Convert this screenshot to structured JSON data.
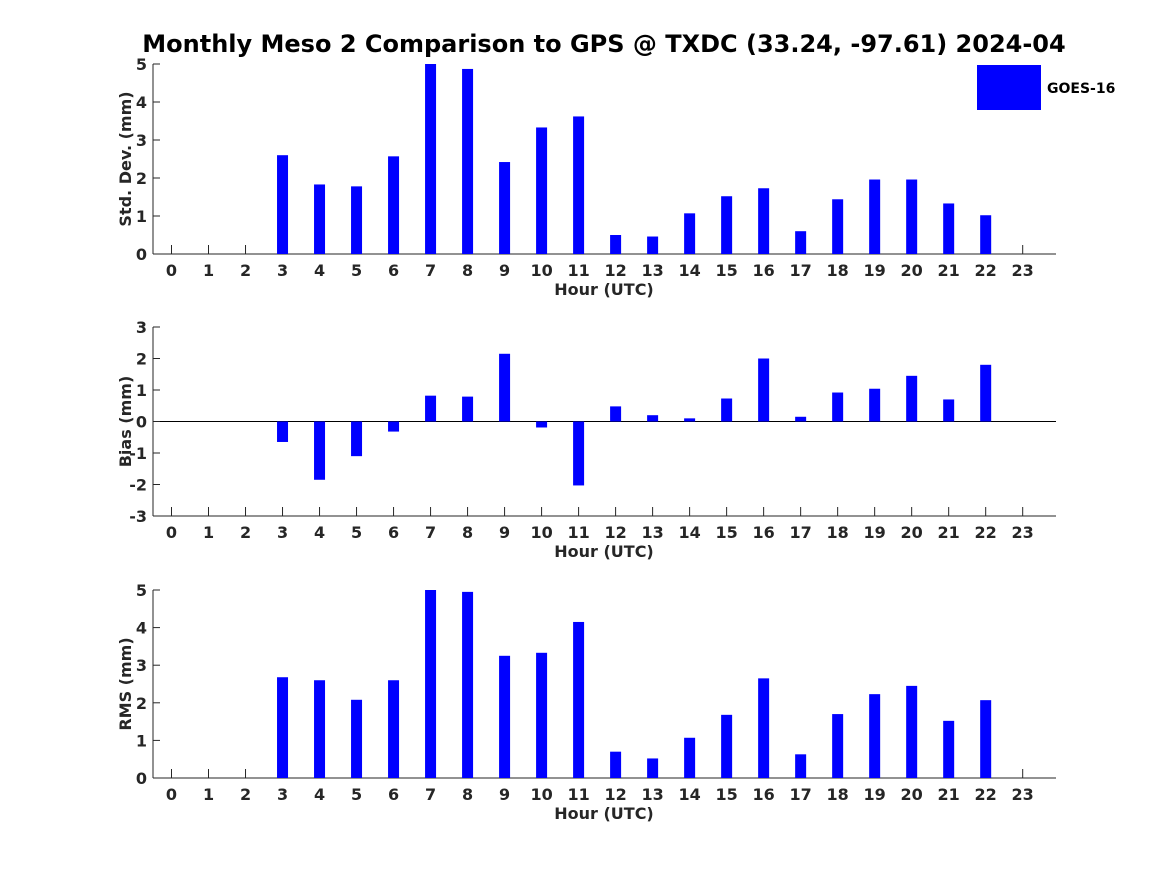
{
  "title": "Monthly Meso 2 Comparison to GPS @ TXDC (33.24, -97.61) 2024-04",
  "legend": {
    "label": "GOES-16",
    "color": "#0000ff",
    "placement": "top-right"
  },
  "chart_data": [
    {
      "type": "bar",
      "ylabel": "Std. Dev. (mm)",
      "xlabel": "Hour (UTC)",
      "ylim": [
        0,
        5
      ],
      "yticks": [
        0,
        1,
        2,
        3,
        4,
        5
      ],
      "categories": [
        "0",
        "1",
        "2",
        "3",
        "4",
        "5",
        "6",
        "7",
        "8",
        "9",
        "10",
        "11",
        "12",
        "13",
        "14",
        "15",
        "16",
        "17",
        "18",
        "19",
        "20",
        "21",
        "22",
        "23"
      ],
      "series": [
        {
          "name": "GOES-16",
          "color": "#0000ff",
          "values": [
            null,
            null,
            null,
            2.6,
            1.83,
            1.78,
            2.57,
            5.0,
            4.87,
            2.42,
            3.33,
            3.62,
            0.5,
            0.46,
            1.07,
            1.52,
            1.73,
            0.6,
            1.44,
            1.96,
            1.96,
            1.33,
            1.02,
            null
          ]
        }
      ]
    },
    {
      "type": "bar",
      "ylabel": "Bias (mm)",
      "xlabel": "Hour (UTC)",
      "ylim": [
        -3,
        3
      ],
      "yticks": [
        -3,
        -2,
        -1,
        0,
        1,
        2,
        3
      ],
      "categories": [
        "0",
        "1",
        "2",
        "3",
        "4",
        "5",
        "6",
        "7",
        "8",
        "9",
        "10",
        "11",
        "12",
        "13",
        "14",
        "15",
        "16",
        "17",
        "18",
        "19",
        "20",
        "21",
        "22",
        "23"
      ],
      "series": [
        {
          "name": "GOES-16",
          "color": "#0000ff",
          "values": [
            null,
            null,
            null,
            -0.65,
            -1.85,
            -1.1,
            -0.32,
            0.82,
            0.79,
            2.15,
            -0.19,
            -2.03,
            0.48,
            0.2,
            0.1,
            0.73,
            2.0,
            0.15,
            0.92,
            1.04,
            1.45,
            0.7,
            1.8,
            null
          ]
        }
      ]
    },
    {
      "type": "bar",
      "ylabel": "RMS (mm)",
      "xlabel": "Hour (UTC)",
      "ylim": [
        0,
        5
      ],
      "yticks": [
        0,
        1,
        2,
        3,
        4,
        5
      ],
      "categories": [
        "0",
        "1",
        "2",
        "3",
        "4",
        "5",
        "6",
        "7",
        "8",
        "9",
        "10",
        "11",
        "12",
        "13",
        "14",
        "15",
        "16",
        "17",
        "18",
        "19",
        "20",
        "21",
        "22",
        "23"
      ],
      "series": [
        {
          "name": "GOES-16",
          "color": "#0000ff",
          "values": [
            null,
            null,
            null,
            2.68,
            2.6,
            2.08,
            2.6,
            5.0,
            4.95,
            3.25,
            3.33,
            4.15,
            0.7,
            0.52,
            1.07,
            1.68,
            2.65,
            0.63,
            1.7,
            2.23,
            2.45,
            1.52,
            2.07,
            null
          ]
        }
      ]
    }
  ]
}
